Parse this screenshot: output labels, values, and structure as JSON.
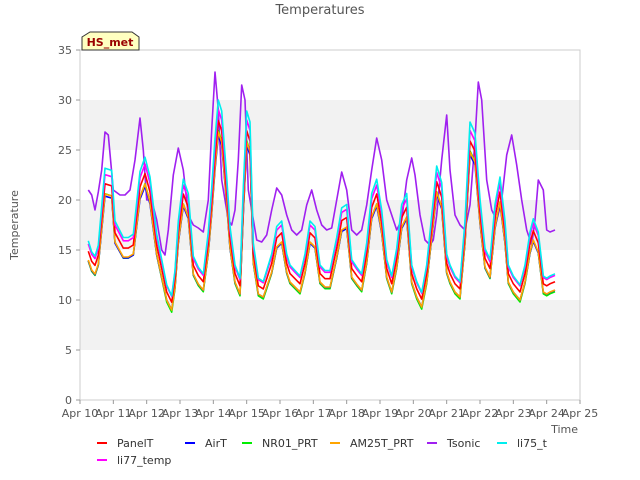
{
  "chart_data": {
    "type": "line",
    "title": "Temperatures",
    "xlabel": "Time",
    "ylabel": "Temperature",
    "badge": "HS_met",
    "xlim": [
      10,
      25
    ],
    "ylim": [
      0,
      35
    ],
    "x_ticks": [
      {
        "value": 10,
        "label": "Apr 10"
      },
      {
        "value": 11,
        "label": "Apr 11"
      },
      {
        "value": 12,
        "label": "Apr 12"
      },
      {
        "value": 13,
        "label": "Apr 13"
      },
      {
        "value": 14,
        "label": "Apr 14"
      },
      {
        "value": 15,
        "label": "Apr 15"
      },
      {
        "value": 16,
        "label": "Apr 16"
      },
      {
        "value": 17,
        "label": "Apr 17"
      },
      {
        "value": 18,
        "label": "Apr 18"
      },
      {
        "value": 19,
        "label": "Apr 19"
      },
      {
        "value": 20,
        "label": "Apr 20"
      },
      {
        "value": 21,
        "label": "Apr 21"
      },
      {
        "value": 22,
        "label": "Apr 22"
      },
      {
        "value": 23,
        "label": "Apr 23"
      },
      {
        "value": 24,
        "label": "Apr 24"
      },
      {
        "value": 25,
        "label": "Apr 25"
      }
    ],
    "y_ticks": [
      0,
      5,
      10,
      15,
      20,
      25,
      30,
      35
    ],
    "grid": "horizontal alternating bands",
    "legend_position": "bottom",
    "base_series": {
      "x": [
        10.25,
        10.35,
        10.45,
        10.55,
        10.75,
        10.95,
        11.05,
        11.3,
        11.45,
        11.6,
        11.8,
        11.95,
        12.1,
        12.3,
        12.45,
        12.6,
        12.75,
        12.85,
        12.95,
        13.1,
        13.25,
        13.4,
        13.55,
        13.7,
        13.85,
        13.95,
        14.05,
        14.15,
        14.25,
        14.4,
        14.5,
        14.65,
        14.8,
        14.9,
        15.0,
        15.1,
        15.2,
        15.35,
        15.5,
        15.6,
        15.75,
        15.9,
        16.05,
        16.2,
        16.3,
        16.45,
        16.6,
        16.75,
        16.9,
        17.05,
        17.2,
        17.35,
        17.5,
        17.7,
        17.85,
        18.0,
        18.15,
        18.3,
        18.45,
        18.6,
        18.75,
        18.9,
        19.05,
        19.2,
        19.35,
        19.5,
        19.65,
        19.8,
        19.95,
        20.1,
        20.25,
        20.4,
        20.55,
        20.7,
        20.85,
        21.0,
        21.1,
        21.25,
        21.4,
        21.55,
        21.7,
        21.85,
        22.0,
        22.15,
        22.3,
        22.45,
        22.6,
        22.75,
        22.85,
        23.0,
        23.2,
        23.35,
        23.5,
        23.6,
        23.75,
        23.9,
        24.0,
        24.1,
        24.25
      ],
      "values": [
        14.2,
        13.2,
        12.8,
        13.8,
        20.8,
        20.6,
        16,
        14.5,
        14.5,
        14.8,
        20.5,
        21.8,
        20,
        14.8,
        12.5,
        10.2,
        9.2,
        11.5,
        16,
        19.8,
        18.5,
        12.8,
        11.8,
        11.2,
        15,
        19,
        23.5,
        27,
        26,
        20,
        15.5,
        12,
        10.8,
        19,
        26,
        25,
        14,
        10.8,
        10.5,
        11.5,
        13,
        15.5,
        16,
        13,
        12,
        11.5,
        11,
        13,
        16,
        15.5,
        12,
        11.5,
        11.5,
        14.5,
        17.2,
        17.5,
        12.5,
        11.8,
        11.2,
        14,
        18.5,
        19.8,
        17,
        12.5,
        11,
        13.5,
        17.5,
        18.5,
        12,
        10.5,
        9.5,
        12,
        16.5,
        21,
        19.5,
        13,
        12,
        11,
        10.5,
        16,
        25,
        24,
        18,
        13.5,
        12.5,
        17.5,
        20,
        16,
        12,
        11,
        10.2,
        12,
        15,
        16.2,
        15,
        11,
        10.8,
        11,
        11.2
      ]
    },
    "series": [
      {
        "name": "PanelT",
        "color": "#ff0000",
        "offset": 0.4,
        "scale": 1.02
      },
      {
        "name": "AirT",
        "color": "#0000ff",
        "offset": 0.0,
        "scale": 0.98
      },
      {
        "name": "NR01_PRT",
        "color": "#00ee00",
        "offset": -0.6,
        "scale": 1.02
      },
      {
        "name": "AM25T_PRT",
        "color": "#ffa500",
        "offset": -0.2,
        "scale": 1.0
      },
      {
        "name": "Tsonic",
        "color": "#a020f0",
        "tsonic": true,
        "x": [
          10.25,
          10.35,
          10.45,
          10.55,
          10.65,
          10.75,
          10.85,
          11.0,
          11.2,
          11.35,
          11.5,
          11.65,
          11.8,
          11.9,
          12.0,
          12.15,
          12.3,
          12.45,
          12.55,
          12.65,
          12.8,
          12.95,
          13.1,
          13.25,
          13.4,
          13.55,
          13.7,
          13.85,
          13.95,
          14.05,
          14.15,
          14.25,
          14.35,
          14.45,
          14.55,
          14.65,
          14.75,
          14.85,
          14.95,
          15.05,
          15.15,
          15.3,
          15.45,
          15.6,
          15.75,
          15.9,
          16.05,
          16.2,
          16.35,
          16.5,
          16.65,
          16.8,
          16.95,
          17.1,
          17.25,
          17.4,
          17.55,
          17.7,
          17.85,
          18.0,
          18.15,
          18.3,
          18.45,
          18.6,
          18.75,
          18.9,
          19.05,
          19.2,
          19.35,
          19.5,
          19.65,
          19.8,
          19.95,
          20.05,
          20.2,
          20.35,
          20.5,
          20.6,
          20.7,
          20.85,
          21.0,
          21.1,
          21.25,
          21.4,
          21.55,
          21.7,
          21.85,
          21.95,
          22.05,
          22.2,
          22.35,
          22.5,
          22.65,
          22.8,
          22.95,
          23.1,
          23.25,
          23.4,
          23.55,
          23.65,
          23.75,
          23.9,
          24.0,
          24.1,
          24.25
        ],
        "values": [
          21,
          20.5,
          19,
          20.8,
          23,
          26.8,
          26.5,
          21,
          20.5,
          20.5,
          21,
          24,
          28.2,
          25,
          20,
          20,
          18,
          15,
          14.5,
          17,
          22.5,
          25.2,
          23,
          18.5,
          17.5,
          17.2,
          16.8,
          20,
          27,
          32.8,
          29,
          22,
          20,
          18,
          17.5,
          19,
          24,
          31.5,
          30,
          21,
          19,
          16,
          15.8,
          16.5,
          19,
          21.2,
          20.5,
          18.5,
          17,
          16.5,
          17,
          19.5,
          21,
          19,
          17.5,
          17,
          17.2,
          20,
          22.8,
          21,
          17,
          16.5,
          17,
          19.5,
          23,
          26.2,
          24,
          20,
          18.5,
          17,
          18,
          22,
          24.2,
          22.5,
          18.5,
          16,
          15.5,
          16,
          18.5,
          24,
          28.5,
          23,
          18.5,
          17.5,
          17,
          19.5,
          26,
          31.8,
          30,
          22,
          19,
          18,
          20,
          24.5,
          26.5,
          23.5,
          20,
          17,
          15.5,
          18,
          22,
          21,
          17,
          16.8,
          17
        ]
      },
      {
        "name": "li75_t",
        "color": "#00eeee",
        "offset": 0.3,
        "scale": 1.1
      },
      {
        "name": "li77_temp",
        "color": "#ff00ff",
        "offset": 0.7,
        "scale": 1.05
      }
    ]
  }
}
